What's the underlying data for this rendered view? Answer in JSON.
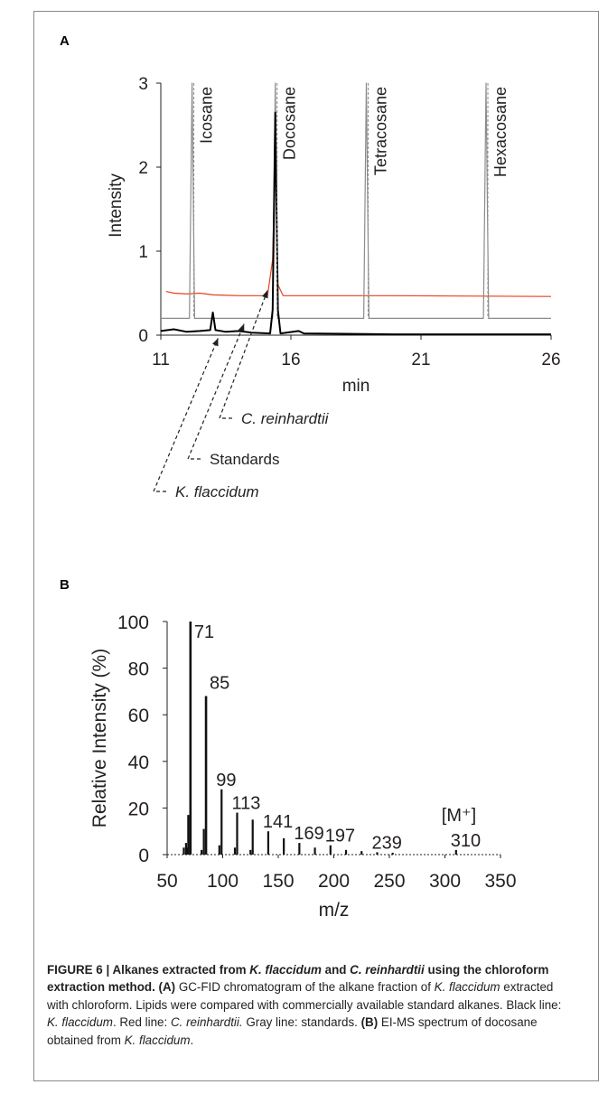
{
  "panel_a_label": "A",
  "panel_b_label": "B",
  "chart_data": [
    {
      "type": "line",
      "xlabel": "min",
      "ylabel": "Intensity",
      "xlim": [
        11,
        26
      ],
      "ylim": [
        0,
        3
      ],
      "x_ticks": [
        "11",
        "16",
        "21",
        "26"
      ],
      "y_ticks": [
        "0",
        "1",
        "2",
        "3"
      ],
      "colors": {
        "K. flaccidum": "#000000",
        "C. reinhardtii": "#e8401c",
        "Standards": "#8c8c8c"
      },
      "standard_peaks": [
        {
          "label": "Icosane",
          "x": 12.2
        },
        {
          "label": "Docosane",
          "x": 15.4
        },
        {
          "label": "Tetracosane",
          "x": 18.9
        },
        {
          "label": "Hexacosane",
          "x": 23.5
        }
      ],
      "series": [
        {
          "name": "C. reinhardtii",
          "baseline": 0.47,
          "points": [
            [
              11.2,
              0.52
            ],
            [
              11.5,
              0.5
            ],
            [
              12.0,
              0.49
            ],
            [
              12.5,
              0.5
            ],
            [
              13.0,
              0.48
            ],
            [
              14.0,
              0.47
            ],
            [
              15.1,
              0.47
            ],
            [
              15.3,
              0.9
            ],
            [
              15.4,
              2.2
            ],
            [
              15.5,
              0.6
            ],
            [
              15.7,
              0.47
            ],
            [
              20.0,
              0.47
            ],
            [
              26.0,
              0.46
            ]
          ]
        },
        {
          "name": "Standards",
          "baseline": 0.2,
          "points": [
            [
              11.0,
              0.2
            ],
            [
              12.1,
              0.2
            ],
            [
              12.2,
              3.0
            ],
            [
              12.3,
              0.2
            ],
            [
              15.3,
              0.2
            ],
            [
              15.4,
              3.0
            ],
            [
              15.5,
              0.2
            ],
            [
              18.8,
              0.2
            ],
            [
              18.9,
              3.0
            ],
            [
              19.0,
              0.2
            ],
            [
              23.4,
              0.2
            ],
            [
              23.5,
              3.0
            ],
            [
              23.6,
              0.2
            ],
            [
              26.0,
              0.2
            ]
          ]
        },
        {
          "name": "K. flaccidum",
          "baseline": 0.02,
          "points": [
            [
              11.0,
              0.05
            ],
            [
              11.5,
              0.07
            ],
            [
              12.0,
              0.04
            ],
            [
              12.5,
              0.05
            ],
            [
              12.9,
              0.06
            ],
            [
              13.0,
              0.27
            ],
            [
              13.1,
              0.06
            ],
            [
              13.5,
              0.04
            ],
            [
              14.0,
              0.05
            ],
            [
              14.5,
              0.03
            ],
            [
              15.2,
              0.02
            ],
            [
              15.3,
              0.3
            ],
            [
              15.4,
              2.65
            ],
            [
              15.5,
              0.3
            ],
            [
              15.6,
              0.02
            ],
            [
              16.3,
              0.05
            ],
            [
              16.5,
              0.02
            ],
            [
              20.0,
              0.01
            ],
            [
              26.0,
              0.01
            ]
          ]
        }
      ],
      "annotations": [
        {
          "text": "C. reinhardtii",
          "italic": true,
          "points_to_x": 15.1,
          "points_to_y": 0.62
        },
        {
          "text": "Standards",
          "italic": false,
          "points_to_x": 14.2,
          "points_to_y": 0.22
        },
        {
          "text": "K. flaccidum",
          "italic": true,
          "points_to_x": 13.2,
          "points_to_y": 0.05
        }
      ]
    },
    {
      "type": "bar",
      "xlabel": "m/z",
      "ylabel": "Relative Intensity (%)",
      "xlim": [
        50,
        350
      ],
      "ylim": [
        0,
        100
      ],
      "x_ticks": [
        "50",
        "100",
        "150",
        "200",
        "250",
        "300",
        "350"
      ],
      "y_ticks": [
        "0",
        "20",
        "40",
        "60",
        "80",
        "100"
      ],
      "peaks": [
        {
          "mz": 65,
          "value": 3
        },
        {
          "mz": 67,
          "value": 5
        },
        {
          "mz": 68,
          "value": 3
        },
        {
          "mz": 69,
          "value": 17
        },
        {
          "mz": 71,
          "value": 100
        },
        {
          "mz": 81,
          "value": 2
        },
        {
          "mz": 83,
          "value": 11
        },
        {
          "mz": 85,
          "value": 68
        },
        {
          "mz": 97,
          "value": 4
        },
        {
          "mz": 99,
          "value": 28
        },
        {
          "mz": 111,
          "value": 3
        },
        {
          "mz": 113,
          "value": 18
        },
        {
          "mz": 125,
          "value": 2
        },
        {
          "mz": 127,
          "value": 15
        },
        {
          "mz": 141,
          "value": 10
        },
        {
          "mz": 155,
          "value": 7
        },
        {
          "mz": 169,
          "value": 5
        },
        {
          "mz": 183,
          "value": 3
        },
        {
          "mz": 197,
          "value": 4
        },
        {
          "mz": 211,
          "value": 2
        },
        {
          "mz": 225,
          "value": 1.5
        },
        {
          "mz": 239,
          "value": 1
        },
        {
          "mz": 253,
          "value": 0.8
        },
        {
          "mz": 310,
          "value": 2
        }
      ],
      "peak_labels": [
        {
          "mz": 71,
          "text": "71"
        },
        {
          "mz": 85,
          "text": "85"
        },
        {
          "mz": 99,
          "text": "99"
        },
        {
          "mz": 113,
          "text": "113"
        },
        {
          "mz": 141,
          "text": "141"
        },
        {
          "mz": 169,
          "text": "169"
        },
        {
          "mz": 197,
          "text": "197"
        },
        {
          "mz": 239,
          "text": "239"
        },
        {
          "mz": 310,
          "text": "310"
        }
      ],
      "molecular_ion_label": "[M⁺]"
    }
  ],
  "caption": {
    "figure_label": "FIGURE 6 | ",
    "title_1": "Alkanes extracted from ",
    "title_sp1": "K. flaccidum",
    "title_2": " and ",
    "title_sp2": "C. reinhardtii",
    "title_3": " using the chloroform extraction method.",
    "a_label": " (A)",
    "a_text_1": " GC-FID chromatogram of the alkane fraction of ",
    "a_sp": "K. flaccidum",
    "a_text_2": " extracted with chloroform. Lipids were compared with commercially available standard alkanes. Black line: ",
    "black_sp": "K. flaccidum",
    "red_pre": ". Red line: ",
    "red_sp": "C. reinhardtii.",
    "gray": " Gray line: standards. ",
    "b_label": "(B)",
    "b_text": " EI-MS spectrum of docosane obtained from ",
    "b_sp": "K. flaccidum",
    "end": "."
  }
}
